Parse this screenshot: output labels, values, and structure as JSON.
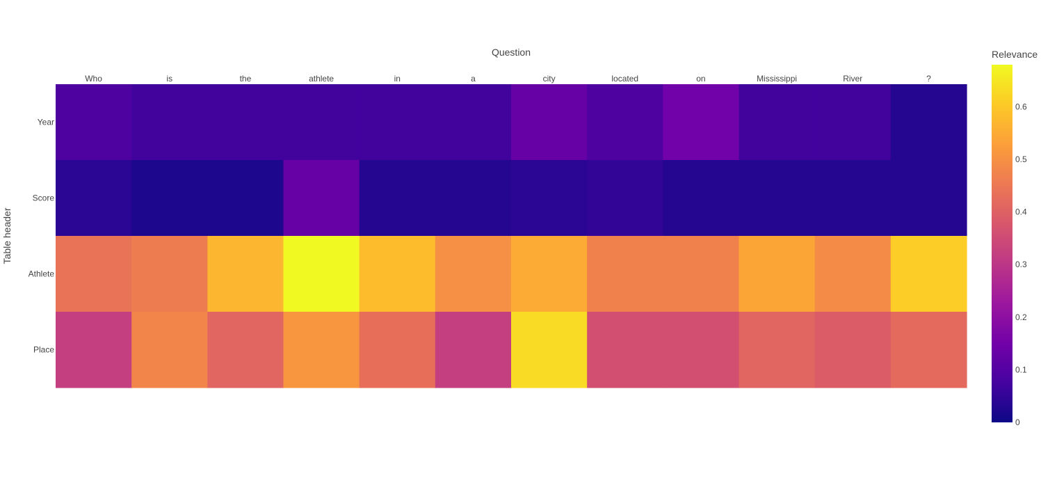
{
  "chart_data": {
    "type": "heatmap",
    "title": "",
    "xlabel": "Question",
    "ylabel": "Table header",
    "x": [
      "Who",
      "is",
      "the",
      "athlete",
      "in",
      "a",
      "city",
      "located",
      "on",
      "Mississippi",
      "River",
      "?"
    ],
    "y": [
      "Year",
      "Score",
      "Athlete",
      "Place"
    ],
    "z": [
      [
        0.09,
        0.07,
        0.07,
        0.07,
        0.07,
        0.07,
        0.13,
        0.09,
        0.15,
        0.07,
        0.07,
        0.03
      ],
      [
        0.04,
        0.02,
        0.02,
        0.13,
        0.03,
        0.03,
        0.04,
        0.05,
        0.03,
        0.03,
        0.03,
        0.03
      ],
      [
        0.44,
        0.46,
        0.57,
        0.68,
        0.58,
        0.5,
        0.55,
        0.47,
        0.47,
        0.54,
        0.49,
        0.61
      ],
      [
        0.32,
        0.48,
        0.41,
        0.51,
        0.43,
        0.32,
        0.63,
        0.36,
        0.36,
        0.41,
        0.39,
        0.42
      ]
    ],
    "colorbar": {
      "title": "Relevance",
      "zmin": 0,
      "zmax": 0.68,
      "ticks": [
        "0",
        "0.1",
        "0.2",
        "0.3",
        "0.4",
        "0.5",
        "0.6"
      ],
      "colorscale": [
        "#0d0887",
        "#46039f",
        "#7201a8",
        "#9c179e",
        "#bd3786",
        "#d8576b",
        "#ed7953",
        "#fb9f3a",
        "#fdca26",
        "#f0f921"
      ]
    },
    "x_axis_side": "top",
    "grid": false
  }
}
